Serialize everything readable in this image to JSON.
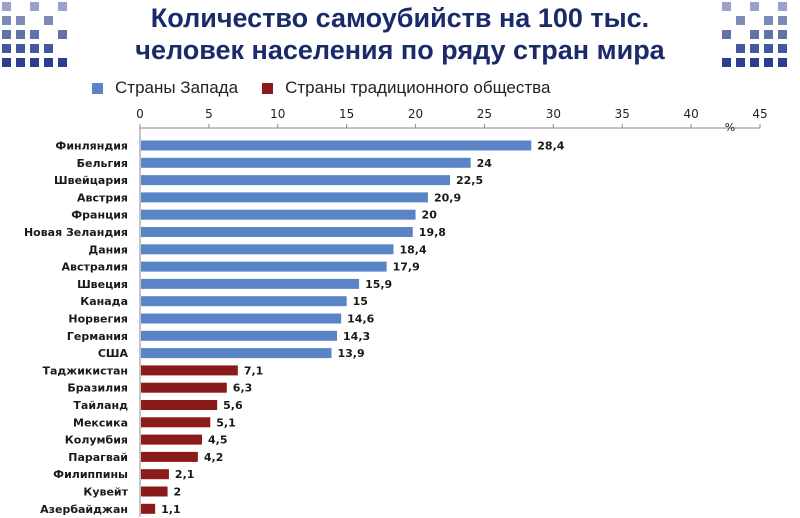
{
  "title": {
    "line1": "Количество самоубийств на 100 тыс.",
    "line2": "человек населения по ряду стран мира"
  },
  "legend": {
    "west_label": "Страны Запада",
    "traditional_label": "Страны традиционного общества"
  },
  "colors": {
    "title": "#1a2a6b",
    "west": "#5b84c6",
    "traditional": "#8b1a1a",
    "header_squares": "#2a3f8f"
  },
  "chart_data": {
    "type": "bar",
    "orientation": "horizontal",
    "unit_label": "%",
    "xlim": [
      0,
      45
    ],
    "xticks": [
      0,
      5,
      10,
      15,
      20,
      25,
      30,
      35,
      40,
      45
    ],
    "x_axis_position": "top",
    "grid": false,
    "legend_position": "top",
    "categories": [
      "Финляндия",
      "Бельгия",
      "Швейцария",
      "Австрия",
      "Франция",
      "Новая Зеландия",
      "Дания",
      "Австралия",
      "Швеция",
      "Канада",
      "Норвегия",
      "Германия",
      "США",
      "Таджикистан",
      "Бразилия",
      "Тайланд",
      "Мексика",
      "Колумбия",
      "Парагвай",
      "Филиппины",
      "Кувейт",
      "Азербайджан"
    ],
    "values": [
      28.4,
      24,
      22.5,
      20.9,
      20,
      19.8,
      18.4,
      17.9,
      15.9,
      15,
      14.6,
      14.3,
      13.9,
      7.1,
      6.3,
      5.6,
      5.1,
      4.5,
      4.2,
      2.1,
      2,
      1.1
    ],
    "value_labels": [
      "28,4",
      "24",
      "22,5",
      "20,9",
      "20",
      "19,8",
      "18,4",
      "17,9",
      "15,9",
      "15",
      "14,6",
      "14,3",
      "13,9",
      "7,1",
      "6,3",
      "5,6",
      "5,1",
      "4,5",
      "4,2",
      "2,1",
      "2",
      "1,1"
    ],
    "groups": [
      "west",
      "west",
      "west",
      "west",
      "west",
      "west",
      "west",
      "west",
      "west",
      "west",
      "west",
      "west",
      "west",
      "traditional",
      "traditional",
      "traditional",
      "traditional",
      "traditional",
      "traditional",
      "traditional",
      "traditional",
      "traditional"
    ]
  }
}
